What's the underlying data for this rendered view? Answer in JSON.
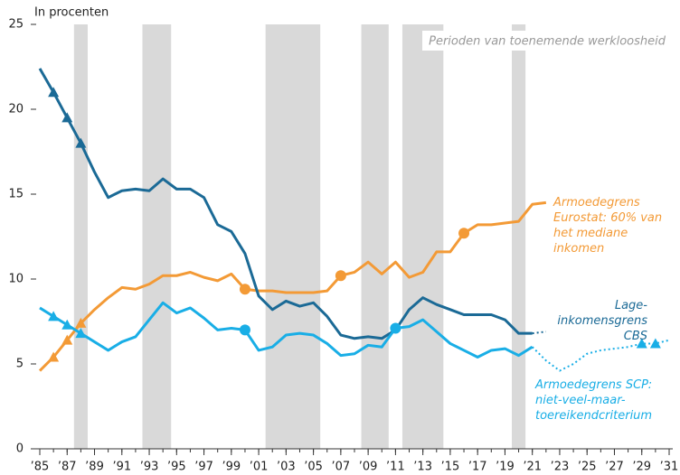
{
  "chart_data": {
    "type": "line",
    "ylabel": "In procenten",
    "shade_label": "Perioden van toenemende werkloosheid",
    "shade_color": "#d9d9d9",
    "shaded_periods": [
      [
        1987.5,
        1988.5
      ],
      [
        1992.5,
        1994.6
      ],
      [
        2001.5,
        2005.5
      ],
      [
        2008.5,
        2010.5
      ],
      [
        2011.5,
        2014.5
      ],
      [
        2019.5,
        2020.5
      ]
    ],
    "x": [
      1985,
      1986,
      1987,
      1988,
      1989,
      1990,
      1991,
      1992,
      1993,
      1994,
      1995,
      1996,
      1997,
      1998,
      1999,
      2000,
      2001,
      2002,
      2003,
      2004,
      2005,
      2006,
      2007,
      2008,
      2009,
      2010,
      2011,
      2012,
      2013,
      2014,
      2015,
      2016,
      2017,
      2018,
      2019,
      2020,
      2021,
      2022,
      2023,
      2024,
      2025,
      2026,
      2027,
      2028,
      2029,
      2030,
      2031
    ],
    "xlim": [
      1985,
      2031
    ],
    "xticks": [
      {
        "value": 1985,
        "label": "’85"
      },
      {
        "value": 1987,
        "label": "’87"
      },
      {
        "value": 1989,
        "label": "’89"
      },
      {
        "value": 1991,
        "label": "’91"
      },
      {
        "value": 1993,
        "label": "’93"
      },
      {
        "value": 1995,
        "label": "’95"
      },
      {
        "value": 1997,
        "label": "’97"
      },
      {
        "value": 1999,
        "label": "’99"
      },
      {
        "value": 2001,
        "label": "’01"
      },
      {
        "value": 2003,
        "label": "’03"
      },
      {
        "value": 2005,
        "label": "’05"
      },
      {
        "value": 2007,
        "label": "’07"
      },
      {
        "value": 2009,
        "label": "’09"
      },
      {
        "value": 2011,
        "label": "’11"
      },
      {
        "value": 2013,
        "label": "’13"
      },
      {
        "value": 2015,
        "label": "’15"
      },
      {
        "value": 2017,
        "label": "’17"
      },
      {
        "value": 2019,
        "label": "’19"
      },
      {
        "value": 2021,
        "label": "’21"
      },
      {
        "value": 2023,
        "label": "’23"
      },
      {
        "value": 2025,
        "label": "’25"
      },
      {
        "value": 2027,
        "label": "’27"
      },
      {
        "value": 2029,
        "label": "’29"
      },
      {
        "value": 2031,
        "label": "’31"
      }
    ],
    "ylim": [
      0,
      25
    ],
    "yticks": [
      0,
      5,
      10,
      15,
      20,
      25
    ],
    "series": [
      {
        "name": "Armoedegrens Eurostat: 60% van het mediane inkomen",
        "color": "#f39a36",
        "values": [
          4.6,
          5.4,
          6.4,
          7.4,
          8.2,
          8.9,
          9.5,
          9.4,
          9.7,
          10.2,
          10.2,
          10.4,
          10.1,
          9.9,
          10.3,
          9.4,
          9.3,
          9.3,
          9.2,
          9.2,
          9.2,
          9.3,
          10.2,
          10.4,
          11.0,
          10.3,
          11.0,
          10.1,
          10.4,
          11.6,
          11.6,
          12.7,
          13.2,
          13.2,
          13.3,
          13.4,
          14.4,
          14.5,
          null,
          null,
          null,
          null,
          null,
          null,
          null,
          null,
          null
        ],
        "projection_values": [
          null,
          null,
          null,
          null,
          null,
          null,
          null,
          null,
          null,
          null,
          null,
          null,
          null,
          null,
          null,
          null,
          null,
          null,
          null,
          null,
          null,
          null,
          null,
          null,
          null,
          null,
          null,
          null,
          null,
          null,
          null,
          null,
          null,
          null,
          null,
          null,
          null,
          null,
          null,
          null,
          null,
          null,
          null,
          null,
          null,
          null,
          null
        ],
        "triangles": [
          1986,
          1987,
          1988
        ],
        "circles": [
          2000,
          2007,
          2016
        ]
      },
      {
        "name": "Lage-inkomensgrens CBS",
        "color": "#1b6a96",
        "values": [
          22.4,
          21.0,
          19.5,
          18.0,
          16.3,
          14.8,
          15.2,
          15.3,
          15.2,
          15.9,
          15.3,
          15.3,
          14.8,
          13.2,
          12.8,
          11.5,
          9.0,
          8.2,
          8.7,
          8.4,
          8.6,
          7.8,
          6.7,
          6.5,
          6.6,
          6.5,
          7.0,
          8.2,
          8.9,
          8.5,
          8.2,
          7.9,
          7.9,
          7.9,
          7.6,
          6.8,
          6.8,
          null,
          null,
          null,
          null,
          null,
          null,
          null,
          null,
          null,
          null
        ],
        "projection_values": [
          null,
          null,
          null,
          null,
          null,
          null,
          null,
          null,
          null,
          null,
          null,
          null,
          null,
          null,
          null,
          null,
          null,
          null,
          null,
          null,
          null,
          null,
          null,
          null,
          null,
          null,
          null,
          null,
          null,
          null,
          null,
          null,
          null,
          null,
          null,
          null,
          6.8,
          6.9,
          null,
          null,
          null,
          null,
          null,
          null,
          null,
          null,
          null
        ],
        "triangles": [
          1986,
          1987,
          1988
        ],
        "circles": []
      },
      {
        "name": "Armoedegrens SCP: niet-veel-maar-toereikendcriterium",
        "color": "#19aee6",
        "values": [
          8.3,
          7.8,
          7.3,
          6.8,
          6.3,
          5.8,
          6.3,
          6.6,
          7.6,
          8.6,
          8.0,
          8.3,
          7.7,
          7.0,
          7.1,
          7.0,
          5.8,
          6.0,
          6.7,
          6.8,
          6.7,
          6.2,
          5.5,
          5.6,
          6.1,
          6.0,
          7.1,
          7.2,
          7.6,
          6.9,
          6.2,
          5.8,
          5.4,
          5.8,
          5.9,
          5.5,
          6.0,
          null,
          null,
          null,
          null,
          null,
          null,
          null,
          null,
          null,
          null
        ],
        "projection_values": [
          null,
          null,
          null,
          null,
          null,
          null,
          null,
          null,
          null,
          null,
          null,
          null,
          null,
          null,
          null,
          null,
          null,
          null,
          null,
          null,
          null,
          null,
          null,
          null,
          null,
          null,
          null,
          null,
          null,
          null,
          null,
          null,
          null,
          null,
          null,
          null,
          6.0,
          5.2,
          4.6,
          5.0,
          5.6,
          5.8,
          5.9,
          6.0,
          6.2,
          6.2,
          6.4
        ],
        "triangles": [
          1986,
          1987,
          1988,
          2029,
          2030
        ],
        "circles": [
          2000,
          2011
        ]
      }
    ]
  }
}
